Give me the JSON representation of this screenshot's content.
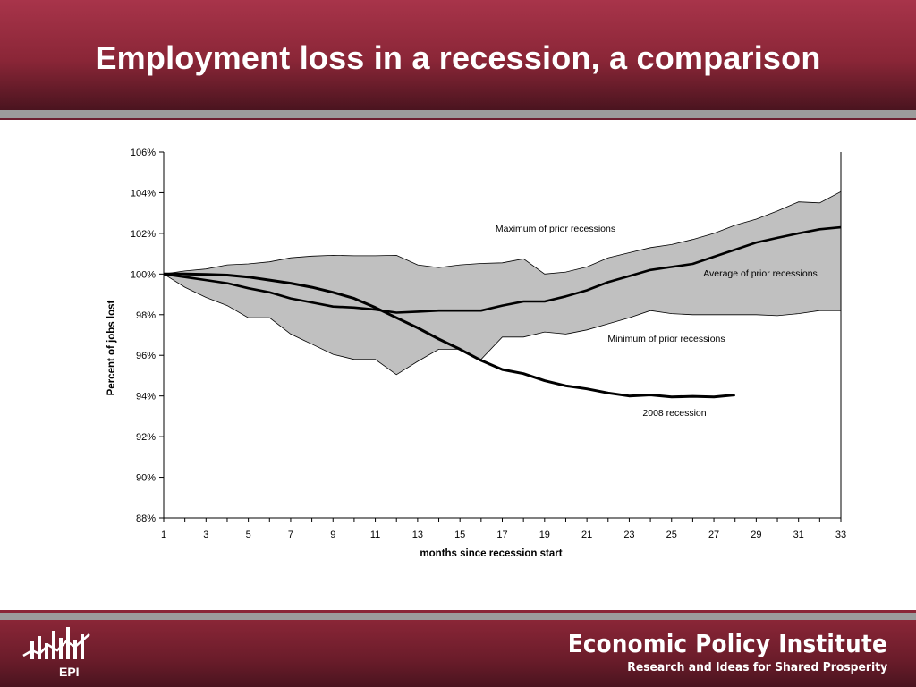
{
  "slide": {
    "title": "Employment loss in a recession, a comparison"
  },
  "footer": {
    "org_name": "Economic Policy Institute",
    "tagline": "Research and Ideas for Shared Prosperity",
    "logo_text": "EPI"
  },
  "colors": {
    "brand": "#8a2637",
    "band_fill": "#c0c0c0",
    "rule_gray": "#9c9c9c"
  },
  "chart_data": {
    "type": "area",
    "title": "",
    "xlabel": "months since recession start",
    "ylabel": "Percent of jobs lost",
    "xlim": [
      1,
      33
    ],
    "ylim": [
      88,
      106
    ],
    "x_ticks": [
      1,
      3,
      5,
      7,
      9,
      11,
      13,
      15,
      17,
      19,
      21,
      23,
      25,
      27,
      29,
      31,
      33
    ],
    "y_ticks": [
      88,
      90,
      92,
      94,
      96,
      98,
      100,
      102,
      104,
      106
    ],
    "y_tick_labels": [
      "88%",
      "90%",
      "92%",
      "94%",
      "96%",
      "98%",
      "100%",
      "102%",
      "104%",
      "106%"
    ],
    "grid": false,
    "legend": "none",
    "band": {
      "upper_name": "Maximum of prior recessions",
      "lower_name": "Minimum of prior recessions",
      "x": [
        1,
        2,
        3,
        4,
        5,
        6,
        7,
        8,
        9,
        10,
        11,
        12,
        13,
        14,
        15,
        16,
        17,
        18,
        19,
        20,
        21,
        22,
        23,
        24,
        25,
        26,
        27,
        28,
        29,
        30,
        31,
        32,
        33
      ],
      "upper": [
        100.0,
        100.15,
        100.25,
        100.45,
        100.5,
        100.6,
        100.8,
        100.88,
        100.92,
        100.9,
        100.9,
        100.92,
        100.45,
        100.32,
        100.45,
        100.52,
        100.55,
        100.75,
        100.0,
        100.1,
        100.35,
        100.8,
        101.05,
        101.3,
        101.45,
        101.7,
        102.0,
        102.4,
        102.7,
        103.1,
        103.55,
        103.5,
        104.05
      ],
      "lower": [
        100.0,
        99.35,
        98.85,
        98.45,
        97.85,
        97.85,
        97.05,
        96.55,
        96.05,
        95.8,
        95.8,
        95.05,
        95.7,
        96.3,
        96.3,
        95.8,
        96.9,
        96.9,
        97.15,
        97.05,
        97.25,
        97.55,
        97.85,
        98.2,
        98.05,
        98.0,
        98.0,
        98.0,
        98.0,
        97.95,
        98.05,
        98.2,
        98.2
      ]
    },
    "series": [
      {
        "name": "Average of prior recessions",
        "x": [
          1,
          2,
          3,
          4,
          5,
          6,
          7,
          8,
          9,
          10,
          11,
          12,
          13,
          14,
          15,
          16,
          17,
          18,
          19,
          20,
          21,
          22,
          23,
          24,
          25,
          26,
          27,
          28,
          29,
          30,
          31,
          32,
          33
        ],
        "values": [
          100.0,
          99.85,
          99.7,
          99.55,
          99.3,
          99.1,
          98.8,
          98.6,
          98.4,
          98.35,
          98.25,
          98.1,
          98.15,
          98.2,
          98.2,
          98.2,
          98.45,
          98.65,
          98.65,
          98.9,
          99.2,
          99.6,
          99.9,
          100.2,
          100.35,
          100.5,
          100.85,
          101.2,
          101.55,
          101.78,
          102.0,
          102.2,
          102.3
        ]
      },
      {
        "name": "2008 recession",
        "x": [
          1,
          2,
          3,
          4,
          5,
          6,
          7,
          8,
          9,
          10,
          11,
          12,
          13,
          14,
          15,
          16,
          17,
          18,
          19,
          20,
          21,
          22,
          23,
          24,
          25,
          26,
          27,
          28
        ],
        "values": [
          100.0,
          100.0,
          99.98,
          99.95,
          99.85,
          99.7,
          99.55,
          99.35,
          99.1,
          98.8,
          98.35,
          97.85,
          97.35,
          96.8,
          96.3,
          95.75,
          95.3,
          95.1,
          94.75,
          94.5,
          94.35,
          94.15,
          94.0,
          94.05,
          93.95,
          93.98,
          93.95,
          94.05
        ]
      }
    ],
    "annotations": [
      "Maximum of prior recessions",
      "Average of prior recessions",
      "Minimum of prior recessions",
      "2008 recession"
    ]
  }
}
